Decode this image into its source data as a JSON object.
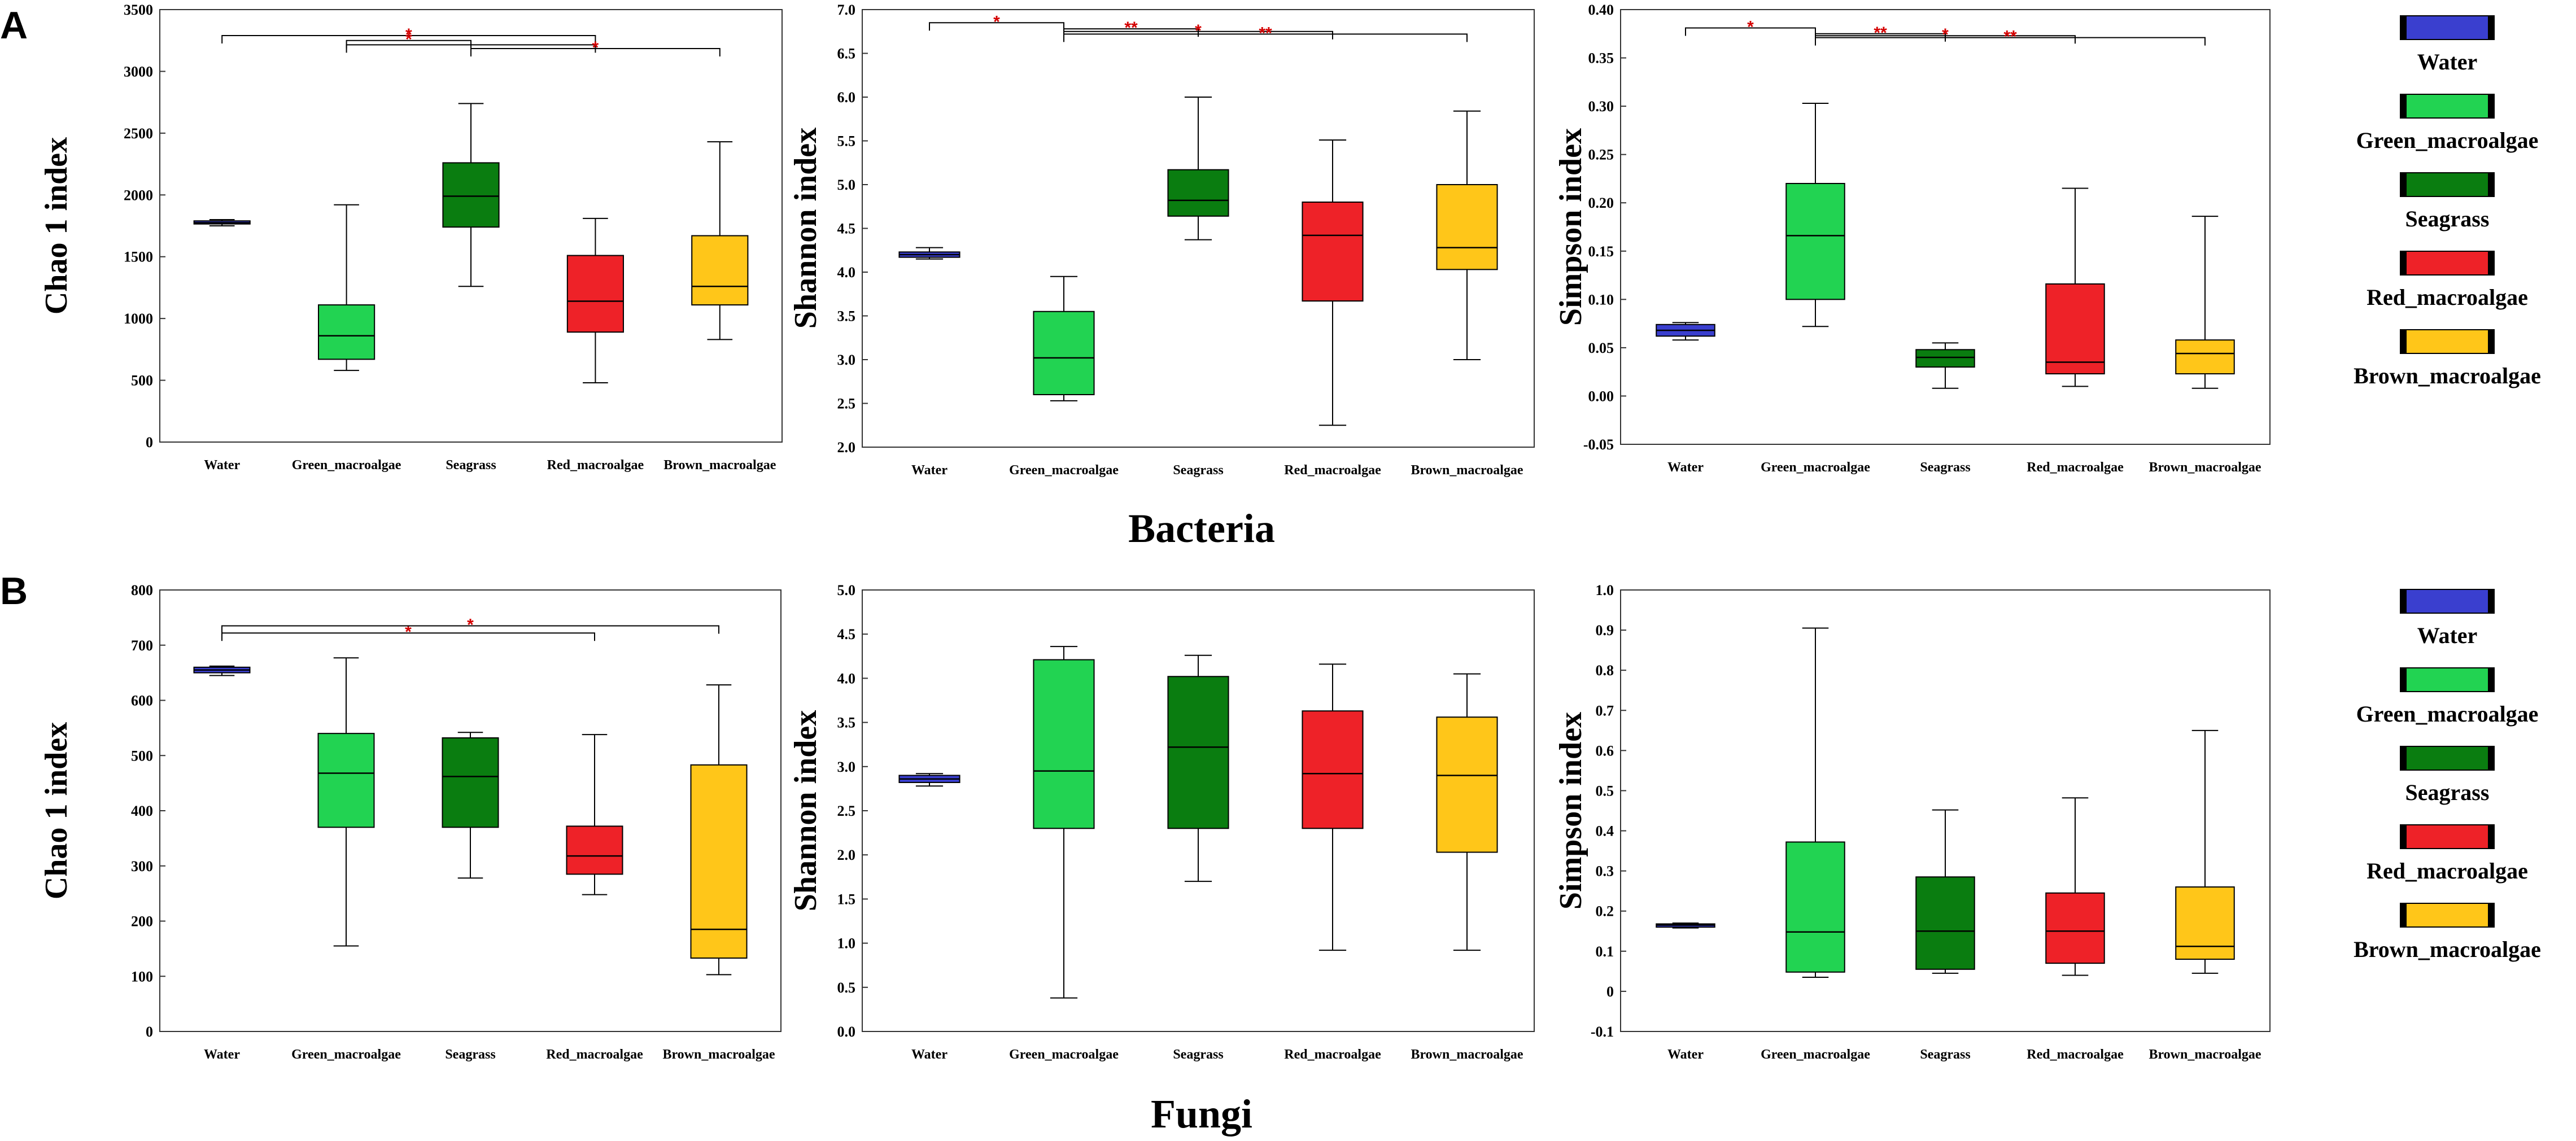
{
  "panel_labels": {
    "a": "A",
    "b": "B"
  },
  "group_labels": {
    "bacteria": "Bacteria",
    "fungi": "Fungi"
  },
  "colors": {
    "Water": "#3a3fcf",
    "Green_macroalgae": "#22d352",
    "Seagrass": "#0a7d10",
    "Red_macroalgae": "#ee2228",
    "Brown_macroalgae": "#ffc619",
    "significance": "#d40000"
  },
  "legend": {
    "bacteria": [
      "Water",
      "Green_macroalgae",
      "Seagrass",
      "Red_macroalgae",
      "Brown_macroalgae"
    ],
    "fungi": [
      "Water",
      "Green_macroalgae",
      "Seagrass",
      "Red_macroalgae",
      "Brown_macroalgae"
    ]
  },
  "chart_data": [
    {
      "id": "bacteria-chao1",
      "type": "box",
      "ylabel": "Chao 1 index",
      "ylim": [
        0,
        3500
      ],
      "ticks": [
        "0",
        "500",
        "1000",
        "1500",
        "2000",
        "2500",
        "3000",
        "3500"
      ],
      "tick_values": [
        0,
        500,
        1000,
        1500,
        2000,
        2500,
        3000,
        3500
      ],
      "categories": [
        "Water",
        "Green_macroalgae",
        "Seagrass",
        "Red_macroalgae",
        "Brown_macroalgae"
      ],
      "boxes": [
        {
          "min": 1750,
          "q1": 1765,
          "median": 1775,
          "q3": 1790,
          "max": 1800
        },
        {
          "min": 580,
          "q1": 670,
          "median": 860,
          "q3": 1110,
          "max": 1920
        },
        {
          "min": 1260,
          "q1": 1740,
          "median": 1990,
          "q3": 2260,
          "max": 2740
        },
        {
          "min": 480,
          "q1": 890,
          "median": 1140,
          "q3": 1510,
          "max": 1810
        },
        {
          "min": 830,
          "q1": 1110,
          "median": 1260,
          "q3": 1670,
          "max": 2430
        }
      ],
      "significance": [
        {
          "from": 0,
          "to": 3,
          "label": "*",
          "y": 3290
        },
        {
          "from": 1,
          "to": 2,
          "label": "*",
          "y": 3250
        },
        {
          "from": 1,
          "to": 3,
          "label": "",
          "y": 3215
        },
        {
          "from": 2,
          "to": 4,
          "label": "*",
          "y": 3185
        }
      ]
    },
    {
      "id": "bacteria-shannon",
      "type": "box",
      "ylabel": "Shannon index",
      "ylim": [
        2.0,
        7.0
      ],
      "ticks": [
        "2.0",
        "2.5",
        "3.0",
        "3.5",
        "4.0",
        "4.5",
        "5.0",
        "5.5",
        "6.0",
        "6.5",
        "7.0"
      ],
      "tick_values": [
        2.0,
        2.5,
        3.0,
        3.5,
        4.0,
        4.5,
        5.0,
        5.5,
        6.0,
        6.5,
        7.0
      ],
      "categories": [
        "Water",
        "Green_macroalgae",
        "Seagrass",
        "Red_macroalgae",
        "Brown_macroalgae"
      ],
      "boxes": [
        {
          "min": 4.15,
          "q1": 4.17,
          "median": 4.2,
          "q3": 4.23,
          "max": 4.28
        },
        {
          "min": 2.53,
          "q1": 2.6,
          "median": 3.02,
          "q3": 3.55,
          "max": 3.95
        },
        {
          "min": 4.37,
          "q1": 4.64,
          "median": 4.82,
          "q3": 5.17,
          "max": 6.0
        },
        {
          "min": 2.25,
          "q1": 3.67,
          "median": 4.42,
          "q3": 4.8,
          "max": 5.51
        },
        {
          "min": 3.0,
          "q1": 4.03,
          "median": 4.28,
          "q3": 5.0,
          "max": 5.84
        }
      ],
      "significance": [
        {
          "from": 0,
          "to": 1,
          "label": "*",
          "y": 6.85
        },
        {
          "from": 1,
          "to": 2,
          "label": "**",
          "y": 6.78
        },
        {
          "from": 1,
          "to": 3,
          "label": "*",
          "y": 6.75
        },
        {
          "from": 1,
          "to": 4,
          "label": "**",
          "y": 6.72
        }
      ]
    },
    {
      "id": "bacteria-simpson",
      "type": "box",
      "ylabel": "Simpson index",
      "ylim": [
        -0.05,
        0.4
      ],
      "ticks": [
        "-0.05",
        "0.00",
        "0.05",
        "0.10",
        "0.15",
        "0.20",
        "0.25",
        "0.30",
        "0.35",
        "0.40"
      ],
      "tick_values": [
        -0.05,
        0.0,
        0.05,
        0.1,
        0.15,
        0.2,
        0.25,
        0.3,
        0.35,
        0.4
      ],
      "categories": [
        "Water",
        "Green_macroalgae",
        "Seagrass",
        "Red_macroalgae",
        "Brown_macroalgae"
      ],
      "boxes": [
        {
          "min": 0.058,
          "q1": 0.062,
          "median": 0.068,
          "q3": 0.074,
          "max": 0.076
        },
        {
          "min": 0.072,
          "q1": 0.1,
          "median": 0.166,
          "q3": 0.22,
          "max": 0.303
        },
        {
          "min": 0.008,
          "q1": 0.03,
          "median": 0.04,
          "q3": 0.048,
          "max": 0.055
        },
        {
          "min": 0.01,
          "q1": 0.023,
          "median": 0.035,
          "q3": 0.116,
          "max": 0.215
        },
        {
          "min": 0.008,
          "q1": 0.023,
          "median": 0.044,
          "q3": 0.058,
          "max": 0.186
        }
      ],
      "significance": [
        {
          "from": 0,
          "to": 1,
          "label": "*",
          "y": 0.381
        },
        {
          "from": 1,
          "to": 2,
          "label": "**",
          "y": 0.375
        },
        {
          "from": 1,
          "to": 3,
          "label": "*",
          "y": 0.373
        },
        {
          "from": 1,
          "to": 4,
          "label": "**",
          "y": 0.371
        }
      ]
    },
    {
      "id": "fungi-chao1",
      "type": "box",
      "ylabel": "Chao 1 index",
      "ylim": [
        0,
        800
      ],
      "ticks": [
        "0",
        "100",
        "200",
        "300",
        "400",
        "500",
        "600",
        "700",
        "800"
      ],
      "tick_values": [
        0,
        100,
        200,
        300,
        400,
        500,
        600,
        700,
        800
      ],
      "categories": [
        "Water",
        "Green_macroalgae",
        "Seagrass",
        "Red_macroalgae",
        "Brown_macroalgae"
      ],
      "boxes": [
        {
          "min": 645,
          "q1": 650,
          "median": 655,
          "q3": 660,
          "max": 662
        },
        {
          "min": 155,
          "q1": 370,
          "median": 468,
          "q3": 540,
          "max": 677
        },
        {
          "min": 278,
          "q1": 370,
          "median": 462,
          "q3": 532,
          "max": 542
        },
        {
          "min": 248,
          "q1": 285,
          "median": 318,
          "q3": 372,
          "max": 538
        },
        {
          "min": 103,
          "q1": 133,
          "median": 185,
          "q3": 483,
          "max": 628
        }
      ],
      "significance": [
        {
          "from": 0,
          "to": 3,
          "label": "*",
          "y": 722
        },
        {
          "from": 0,
          "to": 4,
          "label": "*",
          "y": 735
        }
      ]
    },
    {
      "id": "fungi-shannon",
      "type": "box",
      "ylabel": "Shannon index",
      "ylim": [
        0.0,
        5.0
      ],
      "ticks": [
        "0.0",
        "0.5",
        "1.0",
        "1.5",
        "2.0",
        "2.5",
        "3.0",
        "3.5",
        "4.0",
        "4.5",
        "5.0"
      ],
      "tick_values": [
        0.0,
        0.5,
        1.0,
        1.5,
        2.0,
        2.5,
        3.0,
        3.5,
        4.0,
        4.5,
        5.0
      ],
      "categories": [
        "Water",
        "Green_macroalgae",
        "Seagrass",
        "Red_macroalgae",
        "Brown_macroalgae"
      ],
      "boxes": [
        {
          "min": 2.78,
          "q1": 2.82,
          "median": 2.86,
          "q3": 2.9,
          "max": 2.92
        },
        {
          "min": 0.38,
          "q1": 2.3,
          "median": 2.95,
          "q3": 4.21,
          "max": 4.36
        },
        {
          "min": 1.7,
          "q1": 2.3,
          "median": 3.22,
          "q3": 4.02,
          "max": 4.26
        },
        {
          "min": 0.92,
          "q1": 2.3,
          "median": 2.92,
          "q3": 3.63,
          "max": 4.16
        },
        {
          "min": 0.92,
          "q1": 2.03,
          "median": 2.9,
          "q3": 3.56,
          "max": 4.05
        }
      ],
      "significance": []
    },
    {
      "id": "fungi-simpson",
      "type": "box",
      "ylabel": "Simpson index",
      "ylim": [
        -0.1,
        1.0
      ],
      "ticks": [
        "-0.1",
        "0",
        "0.1",
        "0.2",
        "0.3",
        "0.4",
        "0.5",
        "0.6",
        "0.7",
        "0.8",
        "0.9",
        "1.0"
      ],
      "tick_values": [
        -0.1,
        0.0,
        0.1,
        0.2,
        0.3,
        0.4,
        0.5,
        0.6,
        0.7,
        0.8,
        0.9,
        1.0
      ],
      "categories": [
        "Water",
        "Green_macroalgae",
        "Seagrass",
        "Red_macroalgae",
        "Brown_macroalgae"
      ],
      "boxes": [
        {
          "min": 0.158,
          "q1": 0.16,
          "median": 0.165,
          "q3": 0.168,
          "max": 0.17
        },
        {
          "min": 0.035,
          "q1": 0.048,
          "median": 0.148,
          "q3": 0.372,
          "max": 0.905
        },
        {
          "min": 0.045,
          "q1": 0.055,
          "median": 0.15,
          "q3": 0.285,
          "max": 0.452
        },
        {
          "min": 0.04,
          "q1": 0.07,
          "median": 0.15,
          "q3": 0.245,
          "max": 0.482
        },
        {
          "min": 0.045,
          "q1": 0.08,
          "median": 0.112,
          "q3": 0.26,
          "max": 0.65
        }
      ],
      "significance": []
    }
  ]
}
